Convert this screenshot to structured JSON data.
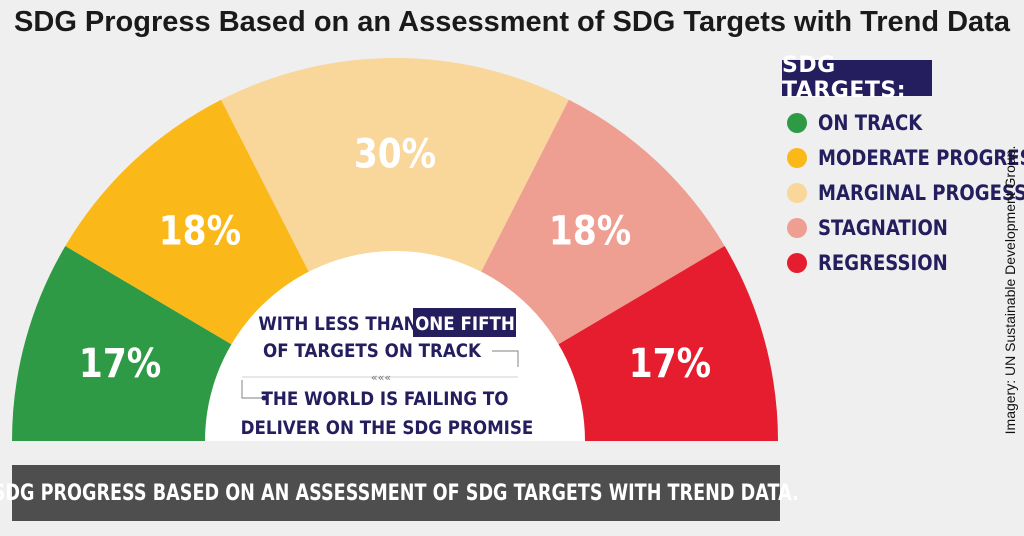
{
  "title": "SDG Progress Based on an Assessment of SDG Targets with Trend Data",
  "chart_data": {
    "type": "pie",
    "variant": "semicircle",
    "categories": [
      "ON TRACK",
      "MODERATE PROGRESS",
      "MARGINAL PROGESS",
      "STAGNATION",
      "REGRESSION"
    ],
    "values": [
      17,
      18,
      30,
      18,
      17
    ],
    "value_labels": [
      "17%",
      "18%",
      "30%",
      "18%",
      "17%"
    ],
    "colors": [
      "#2e9a45",
      "#fbb919",
      "#f9d69a",
      "#ef9e92",
      "#e61d2e"
    ],
    "legend_title": "SDG TARGETS:",
    "legend_position": "right"
  },
  "center_text": {
    "line1_prefix": "WITH LESS THAN",
    "line1_highlight": "ONE FIFTH",
    "line2": "OF TARGETS ON TRACK",
    "chevrons": "«««",
    "line3": "THE WORLD IS FAILING TO",
    "line4": "DELIVER ON THE SDG PROMISE"
  },
  "banner_text": "SDG PROGRESS BASED ON AN ASSESSMENT OF SDG TARGETS WITH TREND DATA.",
  "credit": "Imagery: UN Sustainable Development Group.",
  "colors": {
    "navy": "#241e5e",
    "banner": "#4e4e4e",
    "background": "#efefef"
  }
}
